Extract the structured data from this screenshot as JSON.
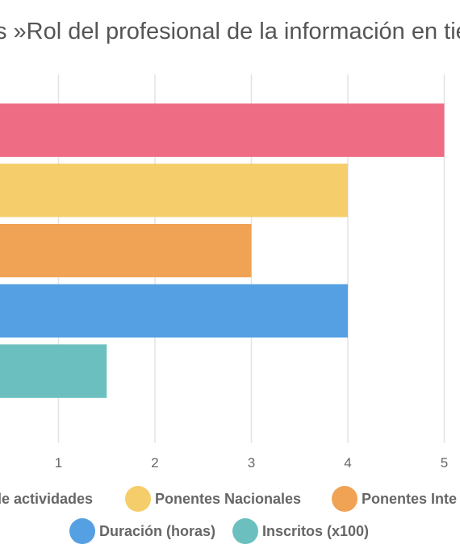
{
  "chart_data": {
    "type": "bar",
    "orientation": "horizontal",
    "title": "s »Rol del profesional de la información en tiem",
    "xlabel": "",
    "ylabel": "",
    "xlim": [
      0,
      5
    ],
    "x_ticks": [
      1,
      2,
      3,
      4,
      5
    ],
    "grid": true,
    "legend_position": "bottom",
    "series": [
      {
        "name": "de actividades",
        "value": 5,
        "color": "#ef6d84"
      },
      {
        "name": "Ponentes Nacionales",
        "value": 4,
        "color": "#f6cd6b"
      },
      {
        "name": "Ponentes Inte",
        "value": 3,
        "color": "#f0a354"
      },
      {
        "name": "Duración (horas)",
        "value": 4,
        "color": "#55a0e3"
      },
      {
        "name": "Inscritos (x100)",
        "value": 1.5,
        "color": "#6bc0bf"
      }
    ]
  }
}
